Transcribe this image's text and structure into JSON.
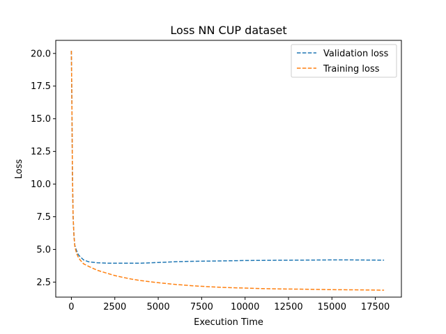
{
  "chart_data": {
    "type": "line",
    "title": "Loss NN CUP dataset",
    "xlabel": "Execution Time",
    "ylabel": "Loss",
    "xlim": [
      -900,
      19000
    ],
    "ylim": [
      1.35,
      21.0
    ],
    "xticks": [
      0,
      2500,
      5000,
      7500,
      10000,
      12500,
      15000,
      17500
    ],
    "yticks": [
      2.5,
      5.0,
      7.5,
      10.0,
      12.5,
      15.0,
      17.5,
      20.0
    ],
    "grid": false,
    "legend_position": "top-right",
    "series": [
      {
        "name": "Validation loss",
        "color": "#1f77b4",
        "style": "dashed",
        "x": [
          0,
          30,
          60,
          100,
          150,
          200,
          300,
          400,
          500,
          700,
          1000,
          1500,
          2000,
          2500,
          3000,
          3500,
          4000,
          4500,
          5000,
          5500,
          6000,
          7000,
          8000,
          9000,
          10000,
          11000,
          12000,
          13000,
          14000,
          15000,
          16000,
          17000,
          18000
        ],
        "y": [
          20.2,
          16.0,
          11.0,
          7.5,
          6.0,
          5.3,
          4.9,
          4.6,
          4.45,
          4.2,
          4.05,
          3.98,
          3.95,
          3.95,
          3.95,
          3.95,
          3.95,
          3.97,
          4.0,
          4.03,
          4.06,
          4.09,
          4.11,
          4.13,
          4.15,
          4.16,
          4.17,
          4.18,
          4.19,
          4.2,
          4.2,
          4.19,
          4.18
        ]
      },
      {
        "name": "Training loss",
        "color": "#ff7f0e",
        "style": "dashed",
        "x": [
          0,
          30,
          60,
          100,
          150,
          200,
          300,
          400,
          500,
          700,
          1000,
          1500,
          2000,
          2500,
          3000,
          3500,
          4000,
          4500,
          5000,
          6000,
          7000,
          8000,
          9000,
          10000,
          11000,
          12000,
          13000,
          14000,
          15000,
          16000,
          17000,
          18000
        ],
        "y": [
          20.2,
          16.0,
          11.0,
          7.5,
          6.0,
          5.2,
          4.7,
          4.4,
          4.2,
          3.9,
          3.7,
          3.4,
          3.2,
          3.0,
          2.85,
          2.72,
          2.62,
          2.53,
          2.45,
          2.32,
          2.22,
          2.14,
          2.08,
          2.04,
          2.0,
          1.98,
          1.96,
          1.94,
          1.92,
          1.91,
          1.9,
          1.88
        ]
      }
    ]
  }
}
